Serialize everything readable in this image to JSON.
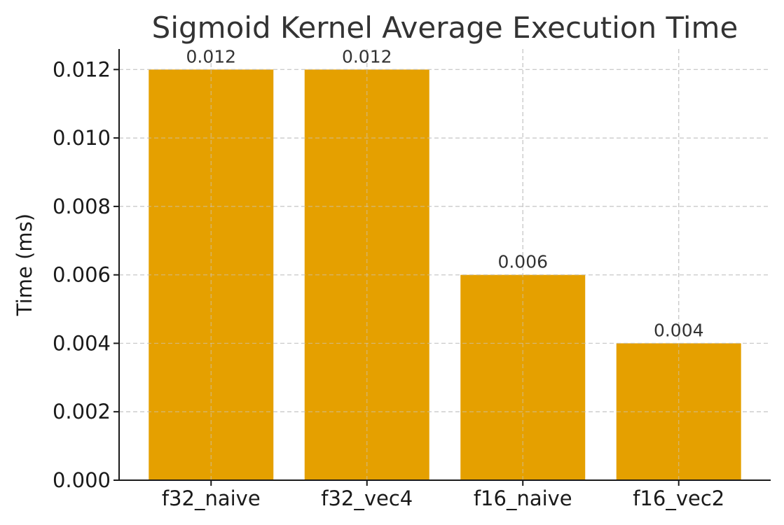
{
  "chart_data": {
    "type": "bar",
    "title": "Sigmoid Kernel Average Execution Time",
    "xlabel": "",
    "ylabel": "Time (ms)",
    "categories": [
      "f32_naive",
      "f32_vec4",
      "f16_naive",
      "f16_vec2"
    ],
    "values": [
      0.012,
      0.012,
      0.006,
      0.004
    ],
    "data_labels": [
      "0.012",
      "0.012",
      "0.006",
      "0.004"
    ],
    "ylim": [
      0,
      0.0126
    ],
    "yticks": [
      0,
      0.002,
      0.004,
      0.006,
      0.008,
      0.01,
      0.012
    ],
    "ytick_labels": [
      "0.000",
      "0.002",
      "0.004",
      "0.006",
      "0.008",
      "0.010",
      "0.012"
    ],
    "grid": true,
    "legend": "none",
    "bar_color": "#E5A000"
  }
}
